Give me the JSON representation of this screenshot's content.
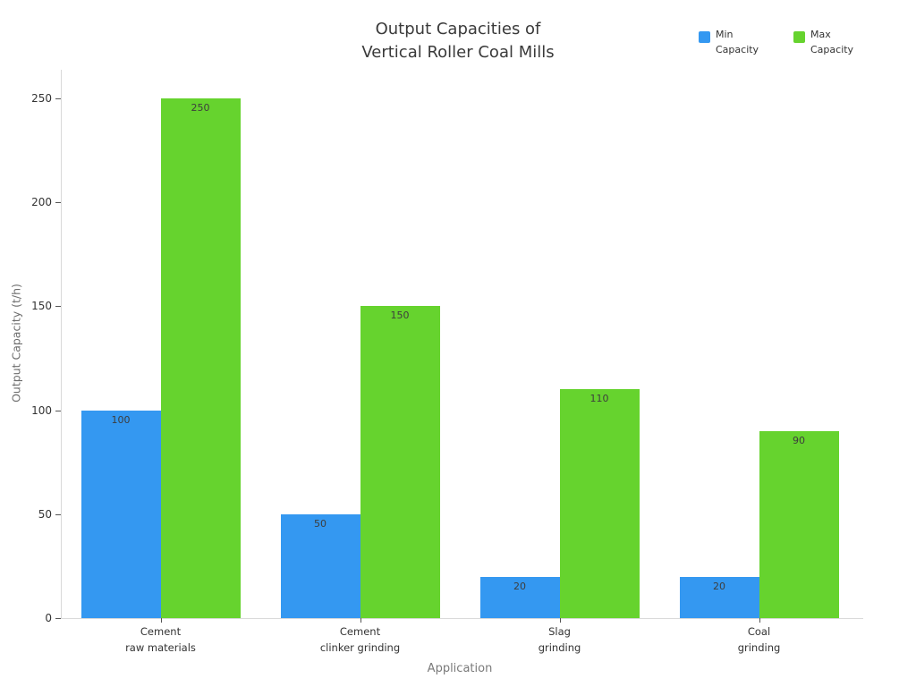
{
  "chart": {
    "title": "Output Capacities of\nVertical Roller Coal Mills"
  },
  "chart_data": {
    "type": "bar",
    "title": "Output Capacities of Vertical Roller Coal Mills",
    "categories": [
      "Cement\nraw materials",
      "Cement\nclinker grinding",
      "Slag\ngrinding",
      "Coal\ngrinding"
    ],
    "series": [
      {
        "name": "Min\nCapacity",
        "values": [
          100,
          50,
          20,
          20
        ],
        "color": "#3498f1"
      },
      {
        "name": "Max\nCapacity",
        "values": [
          250,
          150,
          110,
          90
        ],
        "color": "#66d32e"
      }
    ],
    "xlabel": "Application",
    "ylabel": "Output Capacity (t/h)",
    "yticks": [
      0,
      50,
      100,
      150,
      200,
      250
    ],
    "ylim": [
      0,
      250
    ],
    "grid": false,
    "legend_position": "top-right",
    "bar_value_labels": [
      "100",
      "50",
      "20",
      "20",
      "250",
      "150",
      "110",
      "90"
    ]
  }
}
